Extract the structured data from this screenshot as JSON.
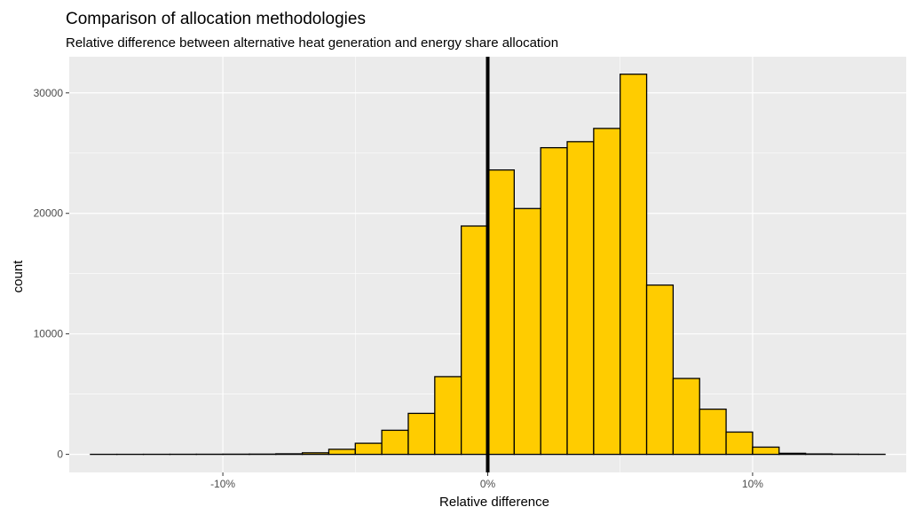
{
  "chart_data": {
    "type": "bar",
    "title": "Comparison of allocation methodologies",
    "subtitle": "Relative difference between alternative heat generation and energy share allocation",
    "xlabel": "Relative difference",
    "ylabel": "count",
    "xlim": [
      -15.8,
      15.8
    ],
    "ylim": [
      -1500,
      33000
    ],
    "x_ticks": [
      -10,
      0,
      10
    ],
    "x_tick_labels": [
      "-10%",
      "0%",
      "10%"
    ],
    "y_ticks": [
      0,
      10000,
      20000,
      30000
    ],
    "y_tick_labels": [
      "0",
      "10000",
      "20000",
      "30000"
    ],
    "bin_width": 1,
    "bin_starts": [
      -15,
      -14,
      -13,
      -12,
      -11,
      -10,
      -9,
      -8,
      -7,
      -6,
      -5,
      -4,
      -3,
      -2,
      -1,
      0,
      1,
      2,
      3,
      4,
      5,
      6,
      7,
      8,
      9,
      10,
      11,
      12,
      13,
      14
    ],
    "values": [
      2,
      3,
      5,
      8,
      10,
      15,
      20,
      45,
      130,
      420,
      920,
      2000,
      3400,
      6450,
      18950,
      23600,
      20400,
      25450,
      25950,
      27050,
      31550,
      14050,
      6300,
      3750,
      1850,
      600,
      90,
      35,
      15,
      5
    ],
    "vline_x": 0,
    "grid": true,
    "bar_fill": "#FFCC00",
    "bar_stroke": "#000000",
    "panel_background": "#EBEBEB",
    "grid_color": "#FFFFFF"
  }
}
